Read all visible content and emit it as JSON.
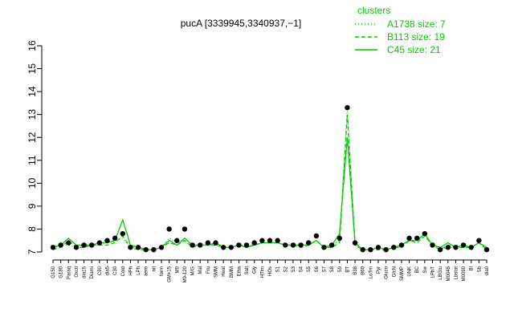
{
  "chart_data": {
    "type": "line",
    "title": "pucA [3339945,3340937,−1]",
    "legend_title": "clusters",
    "legend_position": "top-right",
    "categories": [
      "G150",
      "G180",
      "Paraq",
      "Oxctl",
      "dia15",
      "Diami",
      "C90",
      "dia5",
      "C30",
      "Cold",
      "HPh",
      "LPh",
      "aero",
      "nit",
      "ferm",
      "GM+15",
      "M9",
      "M9-120",
      "M/G",
      "Mal",
      "Fru",
      "SMM",
      "Heat",
      "BMM",
      "Etha",
      "Salt",
      "Gly",
      "HTim",
      "HOs",
      "S1",
      "S2",
      "S3",
      "S4",
      "S5",
      "S6",
      "S7",
      "S8",
      "S9",
      "BT",
      "B38",
      "B60",
      "LoTm",
      "Pyr",
      "Gluco",
      "GlcN",
      "SMMP",
      "UNK",
      "BC",
      "Sw",
      "LPhT",
      "LBGlu",
      "M0045",
      "Lbstat",
      "M0090",
      "Bl",
      "Sb",
      "dia0"
    ],
    "points": {
      "color": "#000000",
      "values": [
        7.2,
        7.3,
        7.4,
        7.2,
        7.3,
        7.3,
        7.4,
        7.5,
        7.6,
        7.8,
        7.2,
        7.2,
        7.1,
        7.1,
        7.2,
        8.0,
        7.5,
        8.0,
        7.3,
        7.3,
        7.4,
        7.4,
        7.2,
        7.2,
        7.3,
        7.3,
        7.4,
        7.5,
        7.5,
        7.5,
        7.3,
        7.3,
        7.3,
        7.4,
        7.7,
        7.2,
        7.3,
        7.6,
        13.3,
        7.4,
        7.1,
        7.1,
        7.2,
        7.1,
        7.2,
        7.3,
        7.6,
        7.6,
        7.8,
        7.3,
        7.1,
        7.2,
        7.2,
        7.3,
        7.2,
        7.5,
        7.1
      ]
    },
    "series": [
      {
        "name": "A1738 size: 7",
        "color": "#00cc00",
        "dash": "dotted",
        "values": [
          7.2,
          7.3,
          7.3,
          7.2,
          7.3,
          7.3,
          7.3,
          7.4,
          7.5,
          7.6,
          7.2,
          7.2,
          7.1,
          7.1,
          7.2,
          7.6,
          7.4,
          7.6,
          7.3,
          7.3,
          7.3,
          7.3,
          7.2,
          7.2,
          7.3,
          7.3,
          7.3,
          7.4,
          7.4,
          7.4,
          7.3,
          7.3,
          7.3,
          7.3,
          7.5,
          7.2,
          7.3,
          7.5,
          13.3,
          7.3,
          7.1,
          7.1,
          7.2,
          7.1,
          7.2,
          7.3,
          7.5,
          7.5,
          7.7,
          7.3,
          7.1,
          7.2,
          7.2,
          7.3,
          7.2,
          7.4,
          7.1
        ]
      },
      {
        "name": "B113 size: 19",
        "color": "#00cc00",
        "dash": "dashed",
        "values": [
          7.1,
          7.2,
          7.5,
          7.2,
          7.2,
          7.3,
          7.3,
          7.3,
          7.4,
          7.7,
          7.2,
          7.1,
          7.1,
          7.1,
          7.2,
          7.4,
          7.3,
          7.5,
          7.2,
          7.3,
          7.3,
          7.3,
          7.2,
          7.2,
          7.3,
          7.2,
          7.3,
          7.4,
          7.4,
          7.4,
          7.3,
          7.3,
          7.2,
          7.3,
          7.5,
          7.2,
          7.2,
          7.4,
          13.0,
          7.3,
          7.1,
          7.1,
          7.1,
          7.1,
          7.2,
          7.2,
          7.5,
          7.4,
          7.7,
          7.3,
          7.1,
          7.3,
          7.2,
          7.2,
          7.2,
          7.4,
          7.1
        ]
      },
      {
        "name": "C45 size: 21",
        "color": "#00cc00",
        "dash": "solid",
        "values": [
          7.2,
          7.3,
          7.6,
          7.3,
          7.3,
          7.3,
          7.4,
          7.4,
          7.5,
          8.4,
          7.3,
          7.2,
          7.1,
          7.1,
          7.2,
          7.5,
          7.3,
          7.6,
          7.3,
          7.3,
          7.3,
          7.4,
          7.2,
          7.2,
          7.3,
          7.2,
          7.3,
          7.4,
          7.4,
          7.4,
          7.3,
          7.3,
          7.3,
          7.3,
          7.5,
          7.2,
          7.3,
          7.8,
          12.0,
          7.4,
          7.1,
          7.1,
          7.2,
          7.1,
          7.2,
          7.3,
          7.5,
          7.5,
          7.8,
          7.3,
          7.2,
          7.4,
          7.2,
          7.3,
          7.2,
          7.4,
          7.2
        ]
      }
    ],
    "ylim": [
      7,
      16
    ],
    "yticks": [
      7,
      8,
      9,
      10,
      11,
      12,
      13,
      14,
      15,
      16
    ]
  }
}
